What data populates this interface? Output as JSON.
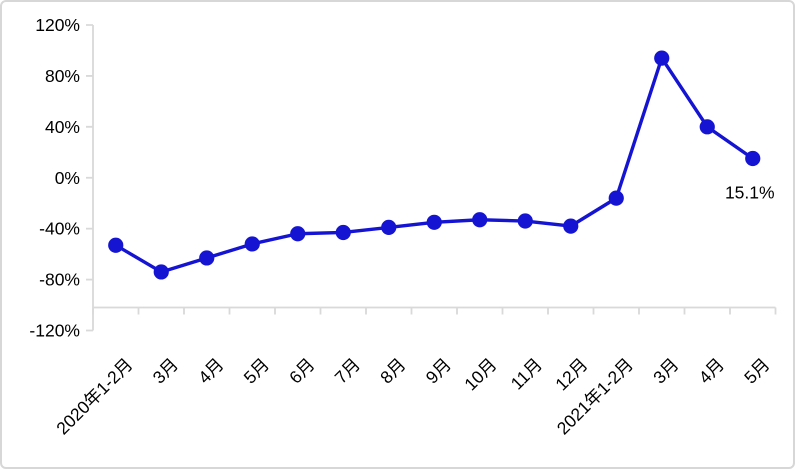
{
  "chart_data": {
    "type": "line",
    "title": "",
    "xlabel": "",
    "ylabel": "",
    "legend": "none",
    "grid": "off",
    "categories": [
      "2020年1-2月",
      "3月",
      "4月",
      "5月",
      "6月",
      "7月",
      "8月",
      "9月",
      "10月",
      "11月",
      "12月",
      "2021年1-2月",
      "3月",
      "4月",
      "5月"
    ],
    "values": [
      -53,
      -74,
      -63,
      -52,
      -44,
      -43,
      -39,
      -35,
      -33,
      -34,
      -38,
      -16,
      94,
      40,
      15.1
    ],
    "ytick_labels": [
      "120%",
      "80%",
      "40%",
      "0%",
      "-40%",
      "-80%",
      "-120%"
    ],
    "ytick_values": [
      120,
      80,
      40,
      0,
      -40,
      -80,
      -120
    ],
    "ylim": [
      -120,
      120
    ],
    "annotation": {
      "text": "15.1%",
      "series_index": 14
    },
    "colors": {
      "line": "#1414d2",
      "marker": "#1414d2",
      "axis": "#d9d9d9",
      "label_text": "#000000",
      "background": "#ffffff",
      "border": "#d7d7d7"
    }
  }
}
